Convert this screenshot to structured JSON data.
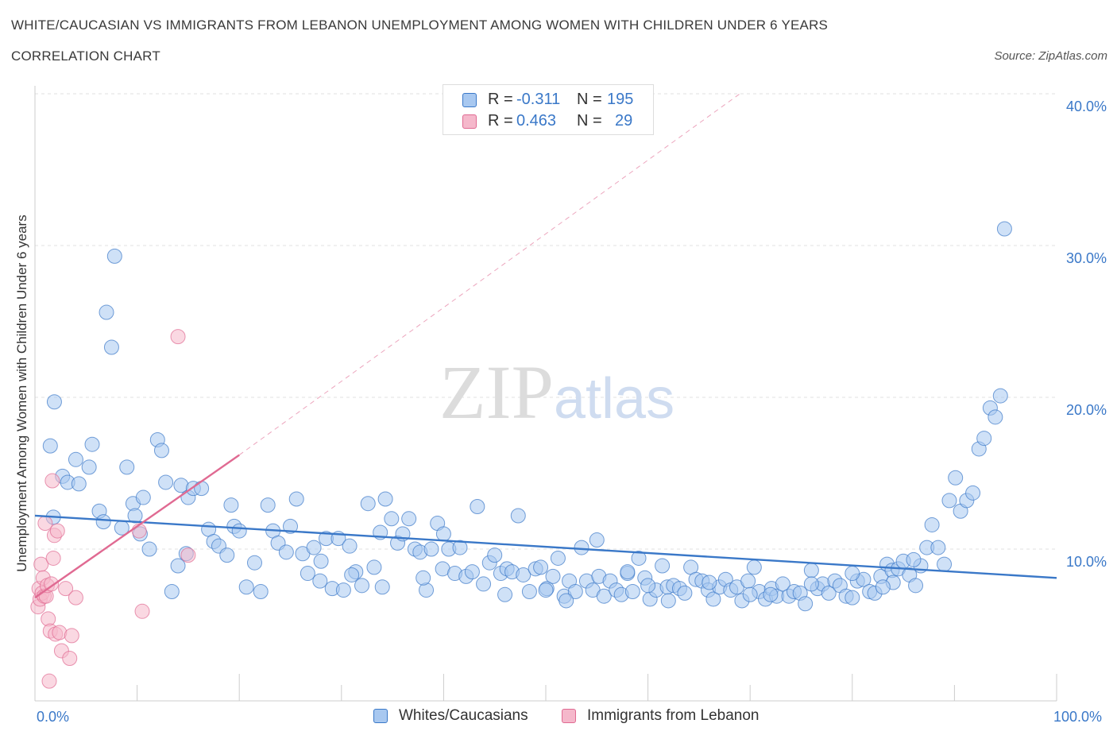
{
  "header": {
    "title": "WHITE/CAUCASIAN VS IMMIGRANTS FROM LEBANON UNEMPLOYMENT AMONG WOMEN WITH CHILDREN UNDER 6 YEARS",
    "subtitle": "CORRELATION CHART",
    "source": "Source: ZipAtlas.com"
  },
  "watermark": {
    "zip": "ZIP",
    "atlas": "atlas"
  },
  "legend": {
    "rows": [
      {
        "r_label": "R =",
        "r_value": "-0.311",
        "n_label": "N =",
        "n_value": "195",
        "color": "#a8c8f0"
      },
      {
        "r_label": "R =",
        "r_value": "0.463",
        "n_label": "N =",
        "n_value": "29",
        "color": "#f5b8cb"
      }
    ]
  },
  "bottom_legend": [
    {
      "label": "Whites/Caucasians",
      "color": "#a8c8f0"
    },
    {
      "label": "Immigrants from Lebanon",
      "color": "#f5b8cb"
    }
  ],
  "chart_data": {
    "type": "scatter",
    "ylabel": "Unemployment Among Women with Children Under 6 years",
    "x_tick_labels": [
      "0.0%",
      "100.0%"
    ],
    "y_tick_labels": [
      "10.0%",
      "20.0%",
      "30.0%",
      "40.0%"
    ],
    "xlim": [
      0,
      100
    ],
    "ylim": [
      0,
      40
    ],
    "y_ticks": [
      10,
      20,
      30,
      40
    ],
    "grid": true,
    "legend_position": "top-center",
    "colors": {
      "blue": "#3a78c8",
      "blue_fill": "#a8c8f0",
      "pink": "#e06a92",
      "pink_fill": "#f5b8cb"
    },
    "series": [
      {
        "name": "Whites/Caucasians",
        "trend": {
          "x": [
            0,
            100
          ],
          "y": [
            12.2,
            8.1
          ]
        },
        "points": [
          [
            1.5,
            16.8
          ],
          [
            1.8,
            12.1
          ],
          [
            1.9,
            19.7
          ],
          [
            2.7,
            14.8
          ],
          [
            3.2,
            14.4
          ],
          [
            4.0,
            15.9
          ],
          [
            4.3,
            14.3
          ],
          [
            5.3,
            15.4
          ],
          [
            5.6,
            16.9
          ],
          [
            6.3,
            12.5
          ],
          [
            6.7,
            11.8
          ],
          [
            7.0,
            25.6
          ],
          [
            7.5,
            23.3
          ],
          [
            7.8,
            29.3
          ],
          [
            8.5,
            11.4
          ],
          [
            9.0,
            15.4
          ],
          [
            9.6,
            13.0
          ],
          [
            9.8,
            12.2
          ],
          [
            10.3,
            11.0
          ],
          [
            10.6,
            13.4
          ],
          [
            11.2,
            10.0
          ],
          [
            12.0,
            17.2
          ],
          [
            12.4,
            16.5
          ],
          [
            12.8,
            14.4
          ],
          [
            13.4,
            7.2
          ],
          [
            14.0,
            8.9
          ],
          [
            14.3,
            14.2
          ],
          [
            14.8,
            9.7
          ],
          [
            15.0,
            13.4
          ],
          [
            15.5,
            14.0
          ],
          [
            16.3,
            14.0
          ],
          [
            17.0,
            11.3
          ],
          [
            17.5,
            10.5
          ],
          [
            18.0,
            10.2
          ],
          [
            18.8,
            9.6
          ],
          [
            19.2,
            12.9
          ],
          [
            19.5,
            11.5
          ],
          [
            20.0,
            11.2
          ],
          [
            20.7,
            7.5
          ],
          [
            21.5,
            9.1
          ],
          [
            22.1,
            7.2
          ],
          [
            22.8,
            12.9
          ],
          [
            23.3,
            11.2
          ],
          [
            23.8,
            10.4
          ],
          [
            24.6,
            9.8
          ],
          [
            25.0,
            11.5
          ],
          [
            25.6,
            13.3
          ],
          [
            26.2,
            9.7
          ],
          [
            26.7,
            8.4
          ],
          [
            27.3,
            10.1
          ],
          [
            27.9,
            7.9
          ],
          [
            28.5,
            10.7
          ],
          [
            29.1,
            7.4
          ],
          [
            29.7,
            10.7
          ],
          [
            30.2,
            7.3
          ],
          [
            30.8,
            10.2
          ],
          [
            31.4,
            8.5
          ],
          [
            32.0,
            7.6
          ],
          [
            32.6,
            13.0
          ],
          [
            33.2,
            8.8
          ],
          [
            33.8,
            11.1
          ],
          [
            34.3,
            13.3
          ],
          [
            34.9,
            12.0
          ],
          [
            35.5,
            10.4
          ],
          [
            36.0,
            11.0
          ],
          [
            36.6,
            12.0
          ],
          [
            37.2,
            10.0
          ],
          [
            37.7,
            9.8
          ],
          [
            38.3,
            7.3
          ],
          [
            38.8,
            10.0
          ],
          [
            39.4,
            11.7
          ],
          [
            39.9,
            8.7
          ],
          [
            40.5,
            10.0
          ],
          [
            41.1,
            8.4
          ],
          [
            41.6,
            10.1
          ],
          [
            42.2,
            8.2
          ],
          [
            42.8,
            8.5
          ],
          [
            43.3,
            12.8
          ],
          [
            43.9,
            7.7
          ],
          [
            44.5,
            9.1
          ],
          [
            45.0,
            9.6
          ],
          [
            45.6,
            8.4
          ],
          [
            46.2,
            8.7
          ],
          [
            46.7,
            8.5
          ],
          [
            47.3,
            12.2
          ],
          [
            47.8,
            8.3
          ],
          [
            48.4,
            7.2
          ],
          [
            49.0,
            8.7
          ],
          [
            49.5,
            8.8
          ],
          [
            50.1,
            7.4
          ],
          [
            50.7,
            8.2
          ],
          [
            51.2,
            9.4
          ],
          [
            51.8,
            6.9
          ],
          [
            52.3,
            7.9
          ],
          [
            52.9,
            7.2
          ],
          [
            53.5,
            10.1
          ],
          [
            54.0,
            7.9
          ],
          [
            54.6,
            7.3
          ],
          [
            55.2,
            8.2
          ],
          [
            55.7,
            6.9
          ],
          [
            56.3,
            7.9
          ],
          [
            56.9,
            7.3
          ],
          [
            57.4,
            7.0
          ],
          [
            58.0,
            8.4
          ],
          [
            58.5,
            7.2
          ],
          [
            59.1,
            9.4
          ],
          [
            59.7,
            8.1
          ],
          [
            60.2,
            6.7
          ],
          [
            60.8,
            7.3
          ],
          [
            61.4,
            8.9
          ],
          [
            61.9,
            7.5
          ],
          [
            62.5,
            7.6
          ],
          [
            63.1,
            7.4
          ],
          [
            63.6,
            7.1
          ],
          [
            64.2,
            8.8
          ],
          [
            64.7,
            8.0
          ],
          [
            65.3,
            7.9
          ],
          [
            65.9,
            7.3
          ],
          [
            66.4,
            6.7
          ],
          [
            67.0,
            7.5
          ],
          [
            67.6,
            8.0
          ],
          [
            68.1,
            7.3
          ],
          [
            68.7,
            7.5
          ],
          [
            69.2,
            6.6
          ],
          [
            69.8,
            7.9
          ],
          [
            70.4,
            8.8
          ],
          [
            70.9,
            7.2
          ],
          [
            71.5,
            6.7
          ],
          [
            72.1,
            7.4
          ],
          [
            72.6,
            6.9
          ],
          [
            73.2,
            7.7
          ],
          [
            73.8,
            6.9
          ],
          [
            74.3,
            7.2
          ],
          [
            74.9,
            7.1
          ],
          [
            75.4,
            6.4
          ],
          [
            76.0,
            8.6
          ],
          [
            76.6,
            7.4
          ],
          [
            77.1,
            7.7
          ],
          [
            77.7,
            7.1
          ],
          [
            78.3,
            7.9
          ],
          [
            78.8,
            7.6
          ],
          [
            79.4,
            6.9
          ],
          [
            80.0,
            6.8
          ],
          [
            80.5,
            7.9
          ],
          [
            81.1,
            8.0
          ],
          [
            81.7,
            7.2
          ],
          [
            82.2,
            7.1
          ],
          [
            82.8,
            8.2
          ],
          [
            83.4,
            9.0
          ],
          [
            83.9,
            8.6
          ],
          [
            84.5,
            8.7
          ],
          [
            85.0,
            9.2
          ],
          [
            85.6,
            8.3
          ],
          [
            86.2,
            7.6
          ],
          [
            86.7,
            8.9
          ],
          [
            87.3,
            10.1
          ],
          [
            87.8,
            11.6
          ],
          [
            88.4,
            10.1
          ],
          [
            89.0,
            9.0
          ],
          [
            89.5,
            13.2
          ],
          [
            90.1,
            14.7
          ],
          [
            90.6,
            12.5
          ],
          [
            91.2,
            13.2
          ],
          [
            91.8,
            13.7
          ],
          [
            92.4,
            16.6
          ],
          [
            92.9,
            17.3
          ],
          [
            93.5,
            19.3
          ],
          [
            94.0,
            18.7
          ],
          [
            94.5,
            20.1
          ],
          [
            94.9,
            31.1
          ],
          [
            84.0,
            7.8
          ],
          [
            86.0,
            9.3
          ],
          [
            60.0,
            7.6
          ],
          [
            58.0,
            8.5
          ],
          [
            40.0,
            11.0
          ],
          [
            55.0,
            10.6
          ],
          [
            34.0,
            7.5
          ],
          [
            38.0,
            8.1
          ],
          [
            72.0,
            7.0
          ],
          [
            66.0,
            7.8
          ],
          [
            50.0,
            7.3
          ],
          [
            46.0,
            7.0
          ],
          [
            31.0,
            8.3
          ],
          [
            28.0,
            9.2
          ],
          [
            52.0,
            6.6
          ],
          [
            70.0,
            7.0
          ],
          [
            76.0,
            7.7
          ],
          [
            83.0,
            7.5
          ],
          [
            80.0,
            8.4
          ],
          [
            62.0,
            6.6
          ]
        ]
      },
      {
        "name": "Immigrants from Lebanon",
        "trend": {
          "x": [
            0,
            20
          ],
          "y": [
            6.8,
            16.2
          ]
        },
        "trend_extension": {
          "x": [
            20,
            69
          ],
          "y": [
            16.2,
            40
          ]
        },
        "points": [
          [
            0.3,
            6.2
          ],
          [
            0.4,
            7.4
          ],
          [
            0.5,
            6.7
          ],
          [
            0.6,
            9.0
          ],
          [
            0.7,
            7.1
          ],
          [
            0.8,
            8.1
          ],
          [
            0.9,
            6.9
          ],
          [
            1.0,
            11.7
          ],
          [
            1.1,
            6.9
          ],
          [
            1.2,
            7.6
          ],
          [
            1.3,
            5.4
          ],
          [
            1.4,
            1.3
          ],
          [
            1.5,
            4.6
          ],
          [
            1.6,
            7.7
          ],
          [
            1.7,
            14.5
          ],
          [
            1.8,
            9.4
          ],
          [
            1.9,
            10.9
          ],
          [
            2.0,
            4.4
          ],
          [
            2.2,
            11.2
          ],
          [
            2.4,
            4.5
          ],
          [
            2.6,
            3.3
          ],
          [
            3.0,
            7.4
          ],
          [
            3.4,
            2.8
          ],
          [
            3.6,
            4.3
          ],
          [
            4.0,
            6.8
          ],
          [
            10.2,
            11.2
          ],
          [
            10.5,
            5.9
          ],
          [
            14.0,
            24.0
          ],
          [
            15.0,
            9.6
          ]
        ]
      }
    ]
  }
}
